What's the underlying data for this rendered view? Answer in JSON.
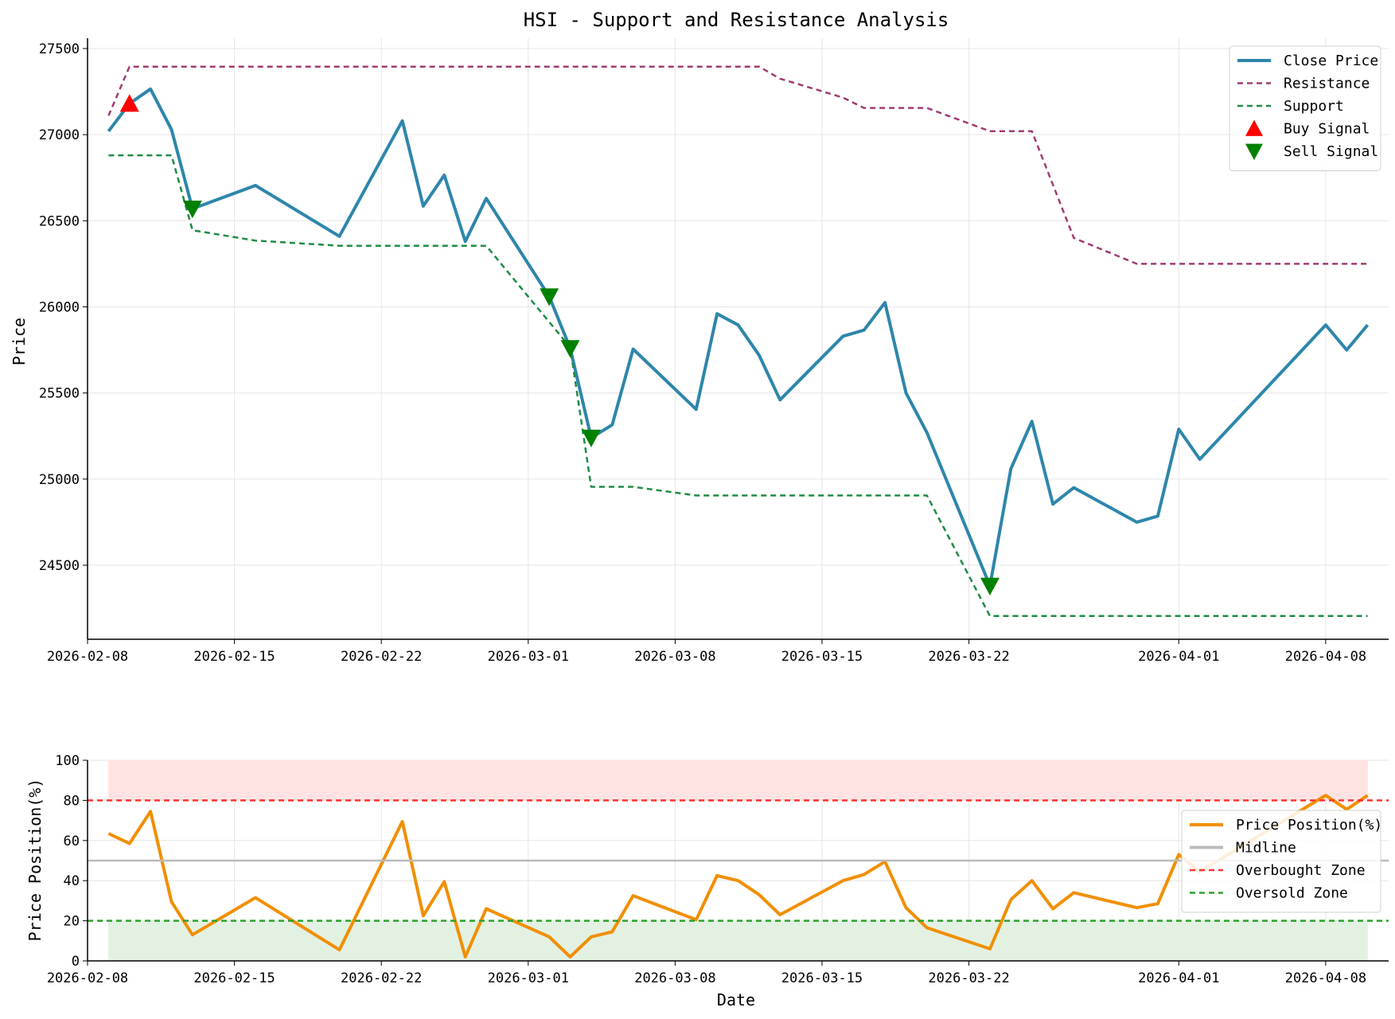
{
  "chart_data": [
    {
      "type": "line",
      "title": "HSI - Support and Resistance Analysis",
      "xlabel": "",
      "ylabel": "Price",
      "ylim": [
        24070,
        27560
      ],
      "xlim": [
        "2026-02-08",
        "2026-04-11"
      ],
      "x_ticks": [
        "2026-02-08",
        "2026-02-15",
        "2026-02-22",
        "2026-03-01",
        "2026-03-08",
        "2026-03-15",
        "2026-03-22",
        "2026-04-01",
        "2026-04-08"
      ],
      "y_ticks": [
        24500,
        25000,
        25500,
        26000,
        26500,
        27000,
        27500
      ],
      "grid": true,
      "legend_position": "top-right",
      "series": [
        {
          "name": "Close Price",
          "color": "#2e86ab",
          "style": "solid",
          "points": [
            [
              "2026-02-09",
              27020
            ],
            [
              "2026-02-10",
              27180
            ],
            [
              "2026-02-11",
              27265
            ],
            [
              "2026-02-12",
              27030
            ],
            [
              "2026-02-13",
              26570
            ],
            [
              "2026-02-16",
              26705
            ],
            [
              "2026-02-20",
              26410
            ],
            [
              "2026-02-23",
              27080
            ],
            [
              "2026-02-24",
              26585
            ],
            [
              "2026-02-25",
              26765
            ],
            [
              "2026-02-26",
              26380
            ],
            [
              "2026-02-27",
              26630
            ],
            [
              "2026-03-02",
              26060
            ],
            [
              "2026-03-03",
              25760
            ],
            [
              "2026-03-04",
              25240
            ],
            [
              "2026-03-05",
              25315
            ],
            [
              "2026-03-06",
              25755
            ],
            [
              "2026-03-09",
              25405
            ],
            [
              "2026-03-10",
              25960
            ],
            [
              "2026-03-11",
              25895
            ],
            [
              "2026-03-12",
              25720
            ],
            [
              "2026-03-13",
              25460
            ],
            [
              "2026-03-16",
              25830
            ],
            [
              "2026-03-17",
              25865
            ],
            [
              "2026-03-18",
              26025
            ],
            [
              "2026-03-19",
              25500
            ],
            [
              "2026-03-20",
              25270
            ],
            [
              "2026-03-23",
              24380
            ],
            [
              "2026-03-24",
              25060
            ],
            [
              "2026-03-25",
              25335
            ],
            [
              "2026-03-26",
              24855
            ],
            [
              "2026-03-27",
              24950
            ],
            [
              "2026-03-30",
              24750
            ],
            [
              "2026-03-31",
              24785
            ],
            [
              "2026-04-01",
              25290
            ],
            [
              "2026-04-02",
              25115
            ],
            [
              "2026-04-08",
              25895
            ],
            [
              "2026-04-09",
              25750
            ],
            [
              "2026-04-10",
              25895
            ]
          ]
        },
        {
          "name": "Resistance",
          "color": "#a23b72",
          "style": "dashed",
          "points": [
            [
              "2026-02-09",
              27110
            ],
            [
              "2026-02-10",
              27395
            ],
            [
              "2026-03-12",
              27395
            ],
            [
              "2026-03-13",
              27325
            ],
            [
              "2026-03-16",
              27215
            ],
            [
              "2026-03-17",
              27155
            ],
            [
              "2026-03-20",
              27155
            ],
            [
              "2026-03-23",
              27020
            ],
            [
              "2026-03-25",
              27020
            ],
            [
              "2026-03-27",
              26400
            ],
            [
              "2026-03-30",
              26250
            ],
            [
              "2026-04-10",
              26250
            ]
          ]
        },
        {
          "name": "Support",
          "color": "#1e8c45",
          "style": "dashed",
          "points": [
            [
              "2026-02-09",
              26880
            ],
            [
              "2026-02-12",
              26880
            ],
            [
              "2026-02-13",
              26445
            ],
            [
              "2026-02-16",
              26385
            ],
            [
              "2026-02-20",
              26355
            ],
            [
              "2026-02-27",
              26355
            ],
            [
              "2026-03-03",
              25765
            ],
            [
              "2026-03-04",
              24955
            ],
            [
              "2026-03-06",
              24955
            ],
            [
              "2026-03-09",
              24905
            ],
            [
              "2026-03-20",
              24905
            ],
            [
              "2026-03-23",
              24205
            ],
            [
              "2026-04-10",
              24205
            ]
          ]
        }
      ],
      "markers": [
        {
          "name": "Buy Signal",
          "shape": "triangle-up",
          "color": "#ff0000",
          "points": [
            [
              "2026-02-10",
              27180
            ]
          ]
        },
        {
          "name": "Sell Signal",
          "shape": "triangle-down",
          "color": "#008000",
          "points": [
            [
              "2026-02-13",
              26570
            ],
            [
              "2026-03-02",
              26060
            ],
            [
              "2026-03-03",
              25760
            ],
            [
              "2026-03-04",
              25240
            ],
            [
              "2026-03-23",
              24380
            ]
          ]
        }
      ]
    },
    {
      "type": "line",
      "title": "",
      "xlabel": "Date",
      "ylabel": "Price Position(%)",
      "ylim": [
        0,
        100
      ],
      "xlim": [
        "2026-02-08",
        "2026-04-11"
      ],
      "x_ticks": [
        "2026-02-08",
        "2026-02-15",
        "2026-02-22",
        "2026-03-01",
        "2026-03-08",
        "2026-03-15",
        "2026-03-22",
        "2026-04-01",
        "2026-04-08"
      ],
      "y_ticks": [
        0,
        20,
        40,
        60,
        80,
        100
      ],
      "grid": true,
      "legend_position": "right",
      "series": [
        {
          "name": "Price Position(%)",
          "color": "#f18f01",
          "style": "solid",
          "points": [
            [
              "2026-02-09",
              63.5
            ],
            [
              "2026-02-10",
              58.5
            ],
            [
              "2026-02-11",
              74.5
            ],
            [
              "2026-02-12",
              29.5
            ],
            [
              "2026-02-13",
              13
            ],
            [
              "2026-02-16",
              31.5
            ],
            [
              "2026-02-20",
              5.5
            ],
            [
              "2026-02-23",
              69.5
            ],
            [
              "2026-02-24",
              22.5
            ],
            [
              "2026-02-25",
              39.5
            ],
            [
              "2026-02-26",
              2
            ],
            [
              "2026-02-27",
              26
            ],
            [
              "2026-03-02",
              12
            ],
            [
              "2026-03-03",
              2
            ],
            [
              "2026-03-04",
              12
            ],
            [
              "2026-03-05",
              14.5
            ],
            [
              "2026-03-06",
              32.5
            ],
            [
              "2026-03-09",
              20.5
            ],
            [
              "2026-03-10",
              42.5
            ],
            [
              "2026-03-11",
              40
            ],
            [
              "2026-03-12",
              33
            ],
            [
              "2026-03-13",
              23
            ],
            [
              "2026-03-16",
              40
            ],
            [
              "2026-03-17",
              43
            ],
            [
              "2026-03-18",
              49.5
            ],
            [
              "2026-03-19",
              26.5
            ],
            [
              "2026-03-20",
              16.5
            ],
            [
              "2026-03-23",
              6
            ],
            [
              "2026-03-24",
              30.5
            ],
            [
              "2026-03-25",
              40
            ],
            [
              "2026-03-26",
              26
            ],
            [
              "2026-03-27",
              34
            ],
            [
              "2026-03-30",
              26.5
            ],
            [
              "2026-03-31",
              28.5
            ],
            [
              "2026-04-01",
              53
            ],
            [
              "2026-04-02",
              44.5
            ],
            [
              "2026-04-08",
              82.5
            ],
            [
              "2026-04-09",
              75.5
            ],
            [
              "2026-04-10",
              82.5
            ]
          ]
        },
        {
          "name": "Midline",
          "color": "#bbbbbb",
          "style": "solid",
          "y": 50
        },
        {
          "name": "Overbought Zone",
          "color": "#ff3333",
          "style": "dashed",
          "y": 80
        },
        {
          "name": "Oversold Zone",
          "color": "#2ca02c",
          "style": "dashed",
          "y": 20
        }
      ],
      "bands": [
        {
          "from": 80,
          "to": 100,
          "color": "#ffe3e3",
          "x_from": "2026-02-09",
          "x_to": "2026-04-10"
        },
        {
          "from": 0,
          "to": 20,
          "color": "#e3f1e3",
          "x_from": "2026-02-09",
          "x_to": "2026-04-10"
        }
      ]
    }
  ]
}
